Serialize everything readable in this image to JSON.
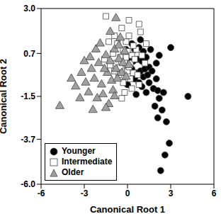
{
  "chart_data": {
    "type": "scatter",
    "xlabel": "Canonical Root 1",
    "ylabel": "Canonical Root 2",
    "xlim": [
      -6,
      6
    ],
    "xticks": [
      -6,
      -3,
      0,
      3,
      6
    ],
    "ylim": [
      -6,
      3
    ],
    "yticks": [
      {
        "value": -6,
        "label": "-6.0"
      },
      -3.7,
      -1.5,
      0.7,
      {
        "value": 3,
        "label": "3.0"
      }
    ],
    "grid": false,
    "legend": "lower left",
    "series": [
      {
        "name": "Younger",
        "color": "#000000",
        "marker": "circle",
        "x": [
          0.2,
          0.5,
          0.8,
          1.1,
          0.4,
          0.7,
          1.0,
          1.3,
          0.3,
          0.6,
          0.9,
          1.2,
          1.5,
          0.1,
          0.5,
          0.8,
          1.1,
          1.4,
          1.7,
          2.0,
          0.3,
          -0.1,
          0.0,
          1.6,
          3.0,
          2.2,
          1.0,
          1.3,
          1.8,
          2.1,
          2.5,
          2.2,
          1.9,
          2.4,
          2.1,
          2.7,
          4.2,
          2.9,
          2.6,
          2.3,
          0.6,
          0.0,
          1.5,
          0.9,
          2.0
        ],
        "y": [
          0.6,
          0.9,
          1.0,
          0.8,
          0.3,
          0.4,
          0.3,
          0.5,
          -0.1,
          -0.3,
          -0.2,
          -0.1,
          0.0,
          0.0,
          -0.6,
          -0.8,
          -0.5,
          -0.4,
          -0.2,
          0.2,
          1.2,
          0.9,
          0.4,
          0.9,
          1.0,
          0.6,
          -1.0,
          -1.3,
          -1.1,
          -1.2,
          -1.3,
          -1.6,
          -2.0,
          -2.2,
          -2.6,
          -2.8,
          -1.5,
          -3.9,
          -4.5,
          -5.3,
          -1.4,
          -0.9,
          -0.8,
          1.4,
          -0.6
        ]
      },
      {
        "name": "Intermediate",
        "color": "#ffffff",
        "marker": "square",
        "x": [
          -1.5,
          -0.4,
          0.8,
          0.1,
          -0.7,
          -0.3,
          0.0,
          0.3,
          -0.5,
          -0.2,
          0.2,
          0.5,
          -0.8,
          -0.4,
          0.0,
          0.4,
          -0.1,
          0.6,
          -1.0,
          -1.2,
          -0.6,
          0.2,
          -0.3,
          0.7,
          1.0,
          1.3,
          0.9,
          -0.9,
          -1.3,
          -0.1,
          0.4,
          -1.6,
          -0.2,
          0.3,
          1.2,
          -0.5,
          0.1,
          0.1,
          -0.9,
          0.8,
          -0.4
        ],
        "y": [
          2.6,
          2.0,
          2.2,
          1.6,
          1.2,
          0.9,
          0.8,
          0.6,
          0.5,
          0.3,
          0.2,
          0.4,
          0.2,
          -0.1,
          -0.2,
          -0.3,
          0.5,
          0.9,
          0.7,
          0.1,
          -0.4,
          -0.6,
          -0.8,
          -0.4,
          0.6,
          1.2,
          1.8,
          1.6,
          1.3,
          1.3,
          1.1,
          0.4,
          -1.3,
          -1.1,
          0.2,
          0.0,
          0.0,
          2.4,
          -0.2,
          -0.9,
          -1.6
        ]
      },
      {
        "name": "Older",
        "color": "#a0a0a0",
        "marker": "triangle",
        "x": [
          -4.7,
          -3.6,
          -3.2,
          -2.9,
          -2.7,
          -2.5,
          -2.3,
          -2.1,
          -2.0,
          -1.8,
          -1.7,
          -1.5,
          -1.4,
          -1.3,
          -1.2,
          -1.1,
          -1.0,
          -0.9,
          -0.8,
          -0.7,
          -0.6,
          -0.5,
          -0.4,
          -0.3,
          -0.2,
          -1.6,
          -2.6,
          -3.0,
          -3.9,
          -2.2,
          -1.9,
          -1.5,
          -0.9,
          -2.4,
          -0.6,
          -1.2,
          -0.8,
          -3.3,
          -0.1,
          0.1
        ],
        "y": [
          -2.0,
          -1.0,
          -0.3,
          -0.8,
          -1.3,
          -0.1,
          -0.6,
          -1.6,
          0.2,
          -0.9,
          -1.4,
          0.6,
          -0.3,
          -1.9,
          0.3,
          -0.7,
          -1.2,
          0.9,
          -0.1,
          -0.6,
          0.4,
          1.5,
          -0.3,
          0.2,
          0.8,
          -0.1,
          0.5,
          0.3,
          -0.6,
          0.9,
          1.2,
          -2.1,
          -1.5,
          -2.2,
          1.1,
          1.8,
          2.5,
          -1.6,
          -0.5,
          0.1
        ]
      }
    ]
  }
}
